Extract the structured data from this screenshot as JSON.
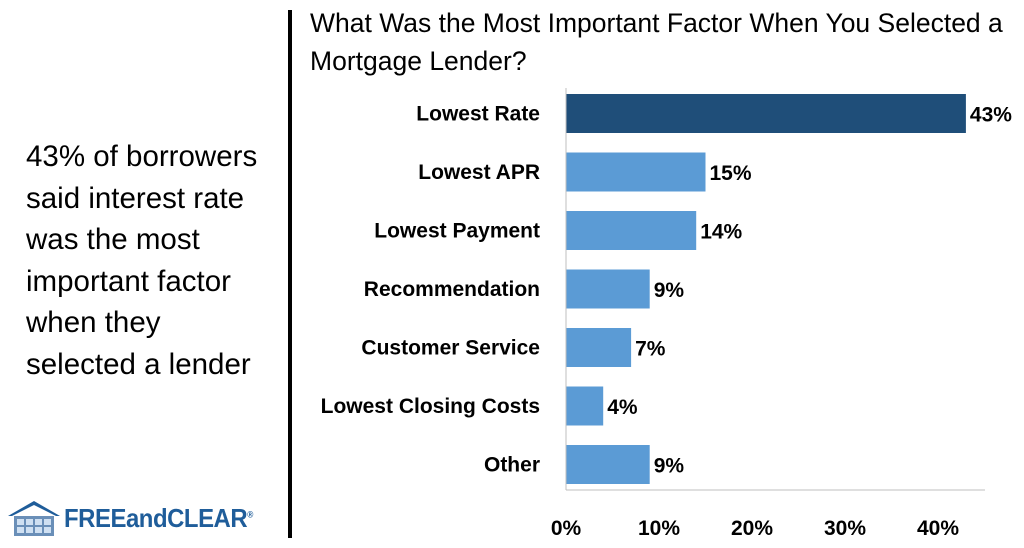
{
  "side_text": "43% of borrowers\nsaid interest rate\nwas the most\nimportant factor\nwhen they\nselected a lender",
  "logo": {
    "text": "FREEandCLEAR",
    "registered": "®"
  },
  "colors": {
    "highlight_bar": "#1f4e79",
    "bar": "#5b9bd5",
    "divider": "#000000"
  },
  "chart_data": {
    "type": "bar",
    "orientation": "horizontal",
    "title": "What Was the Most Important Factor When You Selected a Mortgage Lender?",
    "categories": [
      "Lowest Rate",
      "Lowest APR",
      "Lowest Payment",
      "Recommendation",
      "Customer Service",
      "Lowest Closing Costs",
      "Other"
    ],
    "values": [
      43,
      15,
      14,
      9,
      7,
      4,
      9
    ],
    "value_labels": [
      "43%",
      "15%",
      "14%",
      "9%",
      "7%",
      "4%",
      "9%"
    ],
    "highlight_index": 0,
    "xlim": [
      0,
      45
    ],
    "xticks": [
      0,
      10,
      20,
      30,
      40
    ],
    "xtick_labels": [
      "0%",
      "10%",
      "20%",
      "30%",
      "40%"
    ],
    "grid": false,
    "legend": "none"
  }
}
